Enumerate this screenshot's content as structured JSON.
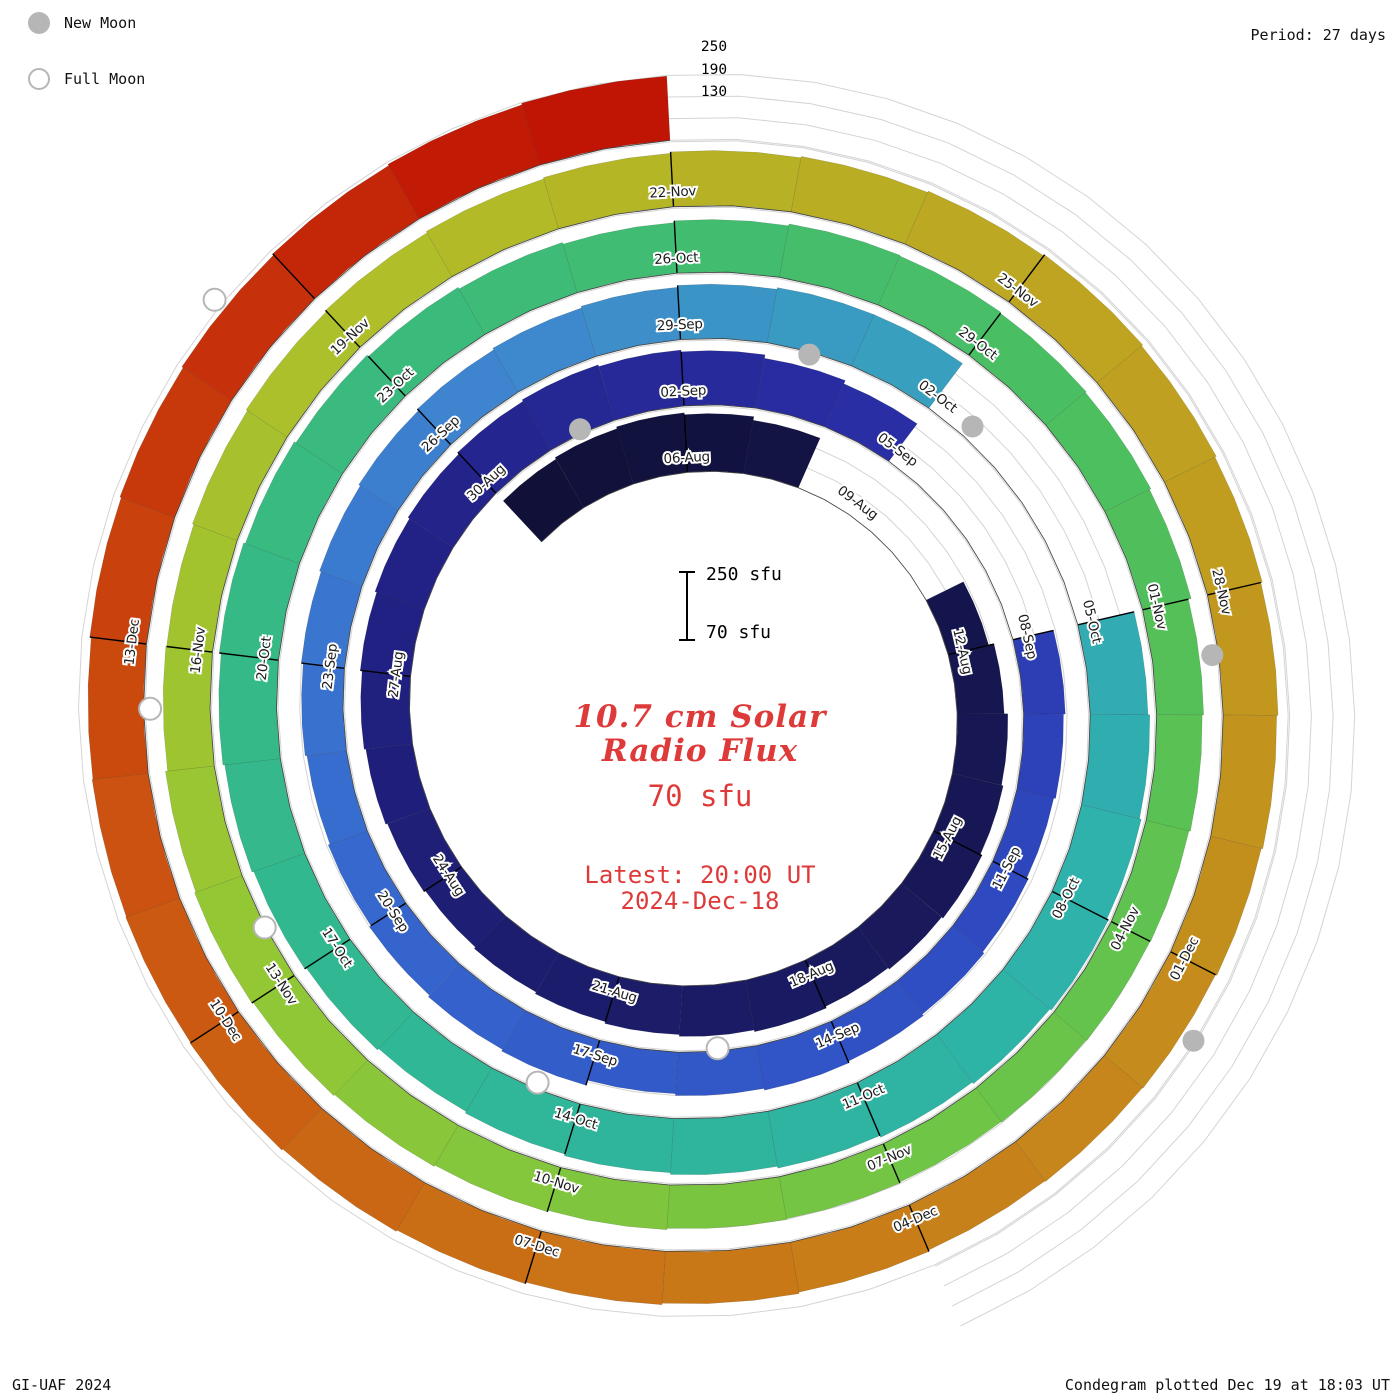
{
  "legend": {
    "new_moon_label": "New Moon",
    "full_moon_label": "Full Moon"
  },
  "header": {
    "period_label": "Period: 27 days",
    "radial_scale_labels": [
      "250",
      "190",
      "130"
    ]
  },
  "footer": {
    "credit": "GI-UAF 2024",
    "plotted": "Condegram plotted Dec 19 at 18:03 UT"
  },
  "center": {
    "title_line1": "10.7 cm Solar",
    "title_line2": "Radio Flux",
    "flux_unit": "70 sfu",
    "latest_line1": "Latest: 20:00 UT",
    "latest_line2": "2024-Dec-18",
    "scale_top_label": "250 sfu",
    "scale_bottom_label": "70 sfu"
  },
  "colors": {
    "accent_red": "#de3a3a",
    "moon_gray": "#b6b6b6",
    "grid_gray": "#d4d4d4"
  },
  "chart_data": {
    "type": "bar",
    "variant": "condegram spiral - polar bar chart, one revolution = 27-day solar rotation, radius grows with time",
    "title": "10.7 cm Solar Radio Flux",
    "units": "sfu",
    "period_days": 27,
    "baseline_sfu": 70,
    "scale_max_sfu": 250,
    "gridlines_sfu": [
      130,
      190,
      250
    ],
    "start_date": "2024-08-03",
    "end_date": "2024-12-18",
    "latest_observation": "2024-Dec-18 20:00 UT",
    "tick_labels": [
      "06-Aug",
      "09-Aug",
      "12-Aug",
      "15-Aug",
      "18-Aug",
      "21-Aug",
      "24-Aug",
      "27-Aug",
      "30-Aug",
      "02-Sep",
      "05-Sep",
      "08-Sep",
      "11-Sep",
      "14-Sep",
      "17-Sep",
      "20-Sep",
      "23-Sep",
      "26-Sep",
      "29-Sep",
      "02-Oct",
      "05-Oct",
      "08-Oct",
      "11-Oct",
      "14-Oct",
      "17-Oct",
      "20-Oct",
      "23-Oct",
      "26-Oct",
      "29-Oct",
      "01-Nov",
      "04-Nov",
      "07-Nov",
      "10-Nov",
      "13-Nov",
      "16-Nov",
      "19-Nov",
      "22-Nov",
      "25-Nov",
      "28-Nov",
      "01-Dec",
      "04-Dec",
      "07-Dec",
      "10-Dec",
      "13-Dec"
    ],
    "gaps_note": "0 = no data plotted (white gap)",
    "daily_flux_sfu": [
      225,
      230,
      235,
      230,
      220,
      0,
      0,
      0,
      185,
      200,
      210,
      215,
      220,
      215,
      210,
      215,
      210,
      205,
      200,
      195,
      190,
      195,
      200,
      205,
      210,
      215,
      220,
      225,
      230,
      225,
      220,
      210,
      200,
      0,
      0,
      0,
      185,
      180,
      175,
      180,
      185,
      190,
      195,
      190,
      185,
      200,
      195,
      190,
      185,
      180,
      185,
      190,
      195,
      200,
      205,
      210,
      215,
      220,
      225,
      225,
      0,
      0,
      0,
      230,
      235,
      240,
      245,
      240,
      235,
      230,
      225,
      220,
      215,
      210,
      215,
      220,
      225,
      230,
      235,
      230,
      225,
      220,
      215,
      210,
      215,
      220,
      218,
      215,
      212,
      208,
      200,
      196,
      192,
      190,
      188,
      186,
      188,
      190,
      194,
      198,
      202,
      206,
      210,
      206,
      200,
      198,
      202,
      206,
      210,
      214,
      218,
      222,
      226,
      230,
      234,
      230,
      226,
      222,
      218,
      214,
      210,
      208,
      206,
      210,
      214,
      218,
      222,
      226,
      230,
      228,
      226,
      224,
      228,
      232,
      236,
      240,
      244,
      248
    ],
    "new_moons": [
      {
        "date": "2024-08-04",
        "day_index": 1
      },
      {
        "date": "2024-09-03",
        "day_index": 31
      },
      {
        "date": "2024-10-02",
        "day_index": 60
      },
      {
        "date": "2024-11-01",
        "day_index": 90
      },
      {
        "date": "2024-12-01",
        "day_index": 120
      }
    ],
    "full_moons": [
      {
        "date": "2024-08-19",
        "day_index": 16
      },
      {
        "date": "2024-09-17",
        "day_index": 45
      },
      {
        "date": "2024-10-17",
        "day_index": 75
      },
      {
        "date": "2024-11-15",
        "day_index": 104
      },
      {
        "date": "2024-12-15",
        "day_index": 134
      }
    ],
    "colormap_stops": [
      [
        0,
        "#101038"
      ],
      [
        14,
        "#19195c"
      ],
      [
        26,
        "#222288"
      ],
      [
        33,
        "#2a2fa6"
      ],
      [
        40,
        "#2f4cc2"
      ],
      [
        48,
        "#3566ce"
      ],
      [
        55,
        "#3f86cf"
      ],
      [
        60,
        "#37a2bc"
      ],
      [
        66,
        "#2eb2ab"
      ],
      [
        74,
        "#30b794"
      ],
      [
        82,
        "#3cbb79"
      ],
      [
        89,
        "#4dbf5d"
      ],
      [
        96,
        "#71c544"
      ],
      [
        103,
        "#97c733"
      ],
      [
        109,
        "#b1bd28"
      ],
      [
        114,
        "#bda621"
      ],
      [
        120,
        "#c48d1c"
      ],
      [
        126,
        "#ca7116"
      ],
      [
        131,
        "#cb4e0f"
      ],
      [
        135,
        "#c52c09"
      ],
      [
        137,
        "#c01505"
      ]
    ]
  }
}
